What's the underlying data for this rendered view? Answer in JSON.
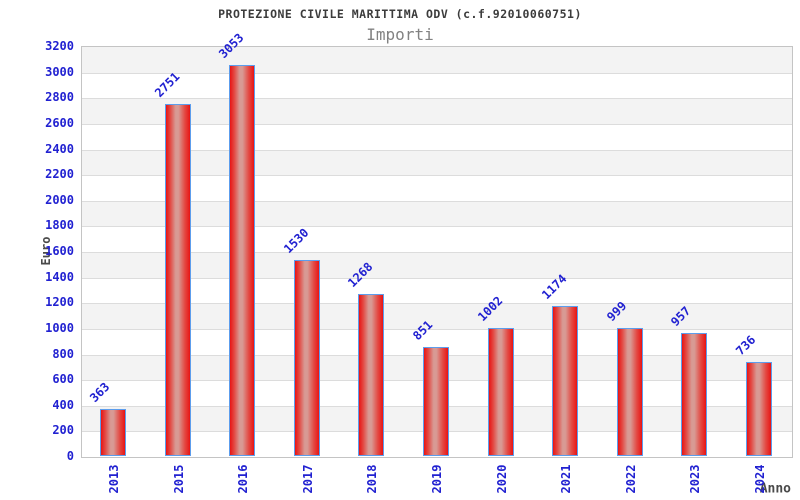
{
  "chart_data": {
    "type": "bar",
    "title": "PROTEZIONE CIVILE MARITTIMA ODV (c.f.92010060751)",
    "subtitle": "Importi",
    "xlabel": "Anno",
    "ylabel": "Euro",
    "categories": [
      "2013",
      "2015",
      "2016",
      "2017",
      "2018",
      "2019",
      "2020",
      "2021",
      "2022",
      "2023",
      "2024"
    ],
    "values": [
      363,
      2751,
      3053,
      1530,
      1268,
      851,
      1002,
      1174,
      999,
      957,
      736
    ],
    "ylim": [
      0,
      3200
    ],
    "ytick_step": 200,
    "grid": "horizontal-alternating-bands",
    "legend": false,
    "value_labels_rotation_deg": -45,
    "x_labels_rotation_deg": -90,
    "colors": {
      "tick_label_blue": "#2121d1",
      "value_label_blue": "#2121d1",
      "bar_edge_red": "#e81414",
      "bar_mid_red": "#e34a44",
      "bar_center_highlight": "#d89a94",
      "bar_border_blue": "#5c9ded",
      "band_gray": "#f3f3f3",
      "band_white": "#ffffff",
      "gridline_gray": "#dcdcdc",
      "plot_border_gray": "#c4c4c4",
      "title_color": "#3c3c3c",
      "subtitle_color": "#828282",
      "axis_title_color": "#4a4a4a",
      "background": "#ffffff"
    }
  }
}
